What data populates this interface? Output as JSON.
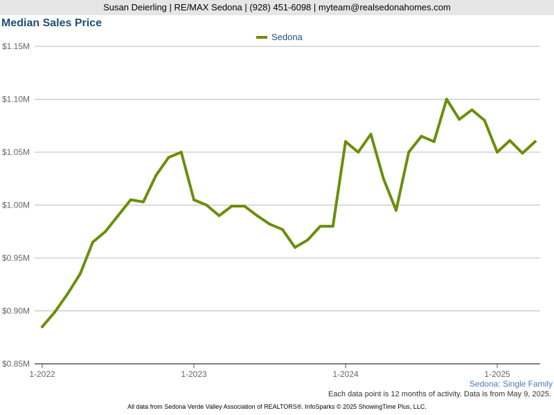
{
  "header": {
    "text": "Susan Deierling | RE/MAX Sedona | (928) 451-6098 | myteam@realsedonahomes.com"
  },
  "footer": {
    "area_label": "Sedona: Single Family",
    "note": "Each data point is 12 months of activity. Data is from May 9, 2025.",
    "credit": "All data from Sedona Verde Valley Association of REALTORS®. InfoSparks © 2025 ShowingTime Plus, LLC."
  },
  "colors": {
    "series": "#6b8e0b",
    "title": "#1f4e79",
    "grid": "#bbbbbb"
  },
  "chart_data": {
    "type": "line",
    "title": "Median Sales Price",
    "xlabel": "",
    "ylabel": "",
    "ylim": [
      850000,
      1150000
    ],
    "yticks": [
      {
        "value": 850000,
        "label": "$0.85M"
      },
      {
        "value": 900000,
        "label": "$0.90M"
      },
      {
        "value": 950000,
        "label": "$0.95M"
      },
      {
        "value": 1000000,
        "label": "$1.00M"
      },
      {
        "value": 1050000,
        "label": "$1.05M"
      },
      {
        "value": 1100000,
        "label": "$1.10M"
      },
      {
        "value": 1150000,
        "label": "$1.15M"
      }
    ],
    "xticks": [
      {
        "index": 0,
        "label": "1-2022"
      },
      {
        "index": 12,
        "label": "1-2023"
      },
      {
        "index": 24,
        "label": "1-2024"
      },
      {
        "index": 36,
        "label": "1-2025"
      }
    ],
    "grid": true,
    "legend_position": "top-center",
    "series": [
      {
        "name": "Sedona",
        "x": [
          "1-2022",
          "2-2022",
          "3-2022",
          "4-2022",
          "5-2022",
          "6-2022",
          "7-2022",
          "8-2022",
          "9-2022",
          "10-2022",
          "11-2022",
          "12-2022",
          "1-2023",
          "2-2023",
          "3-2023",
          "4-2023",
          "5-2023",
          "6-2023",
          "7-2023",
          "8-2023",
          "9-2023",
          "10-2023",
          "11-2023",
          "12-2023",
          "1-2024",
          "2-2024",
          "3-2024",
          "4-2024",
          "5-2024",
          "6-2024",
          "7-2024",
          "8-2024",
          "9-2024",
          "10-2024",
          "11-2024",
          "12-2024",
          "1-2025",
          "2-2025",
          "3-2025",
          "4-2025"
        ],
        "values": [
          885000,
          899000,
          916000,
          935000,
          965000,
          975000,
          990000,
          1005000,
          1003000,
          1028000,
          1045000,
          1050000,
          1005000,
          1000000,
          990000,
          999000,
          999000,
          990000,
          982000,
          977000,
          960000,
          967000,
          980000,
          980000,
          1060000,
          1050000,
          1067000,
          1025000,
          995000,
          1050000,
          1065000,
          1060000,
          1100000,
          1081000,
          1090000,
          1080000,
          1050000,
          1061000,
          1049000,
          1060000
        ]
      }
    ]
  }
}
